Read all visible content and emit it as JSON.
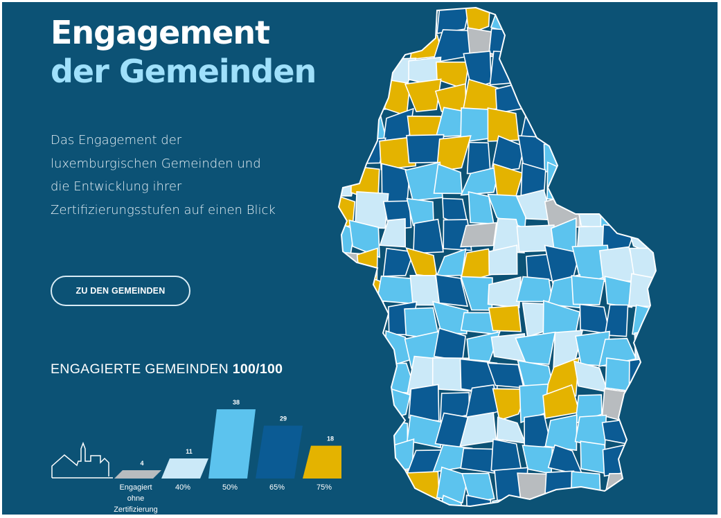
{
  "title_line1": "Engagement",
  "title_line2": "der Gemeinden",
  "description": "Das Engagement der luxemburgischen Gemeinden und die Entwicklung ihrer Zertifizierungsstufen auf einen Blick",
  "button_label": "ZU DEN GEMEINDEN",
  "summary": {
    "label": "ENGAGIERTE GEMEINDEN",
    "value": "100/100"
  },
  "colors": {
    "background": "#0c5275",
    "none": "#b8bcbf",
    "level40": "#cbe9f8",
    "level50": "#5cc3ee",
    "level65": "#0b5b94",
    "level75": "#e4b300",
    "border": "#ffffff"
  },
  "chart_data": {
    "type": "bar",
    "categories": [
      "Engagiert ohne Zertifizierung",
      "40%",
      "50%",
      "65%",
      "75%"
    ],
    "values": [
      4,
      11,
      38,
      29,
      18
    ],
    "value_labels": [
      "4",
      "11",
      "38",
      "29",
      "18"
    ],
    "category_label_lines": [
      [
        "Engagiert",
        "ohne",
        "Zertifizierung"
      ],
      [
        "40%"
      ],
      [
        "50%"
      ],
      [
        "65%"
      ],
      [
        "75%"
      ]
    ],
    "colors": [
      "#b8bcbf",
      "#cbe9f8",
      "#5cc3ee",
      "#0b5b94",
      "#e4b300"
    ]
  }
}
